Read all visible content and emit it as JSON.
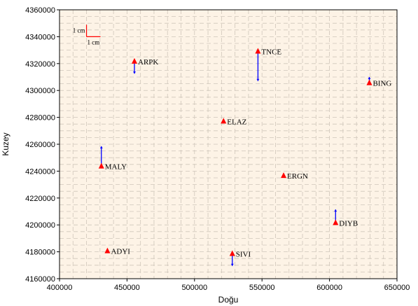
{
  "chart_data": {
    "type": "scatter",
    "xlabel": "Doğu",
    "ylabel": "Kuzey",
    "xlim": [
      400000,
      650000
    ],
    "ylim": [
      4160000,
      4360000
    ],
    "x_ticks": [
      "400000",
      "450000",
      "500000",
      "550000",
      "600000",
      "650000"
    ],
    "y_ticks": [
      "4160000",
      "4180000",
      "4200000",
      "4220000",
      "4240000",
      "4260000",
      "4280000",
      "4300000",
      "4320000",
      "4340000",
      "4360000"
    ],
    "grid": true,
    "marker_color": "#ff0000",
    "vector_color": "#0000ff",
    "background_color": "#fdf3e6",
    "scale": {
      "x_label": "1 cm",
      "y_label": "1 cm",
      "x": 420000,
      "y": 4340000
    },
    "stations": [
      {
        "name": "ARPK",
        "x": 455500,
        "y": 4321500,
        "dx": 0,
        "dy": -9000
      },
      {
        "name": "TNCE",
        "x": 547000,
        "y": 4329000,
        "dx": 0,
        "dy": -22000
      },
      {
        "name": "BING",
        "x": 629500,
        "y": 4305500,
        "dx": 0,
        "dy": 4500
      },
      {
        "name": "ELAZ",
        "x": 521500,
        "y": 4277000,
        "dx": 0,
        "dy": 0
      },
      {
        "name": "MALY",
        "x": 431000,
        "y": 4243500,
        "dx": 0,
        "dy": 15000
      },
      {
        "name": "ERGN",
        "x": 566000,
        "y": 4236500,
        "dx": 0,
        "dy": 0
      },
      {
        "name": "DIYB",
        "x": 604500,
        "y": 4201500,
        "dx": 0,
        "dy": 10000
      },
      {
        "name": "ADYI",
        "x": 435500,
        "y": 4180500,
        "dx": 0,
        "dy": 0
      },
      {
        "name": "SIVI",
        "x": 528000,
        "y": 4178500,
        "dx": 0,
        "dy": -9000
      }
    ]
  }
}
